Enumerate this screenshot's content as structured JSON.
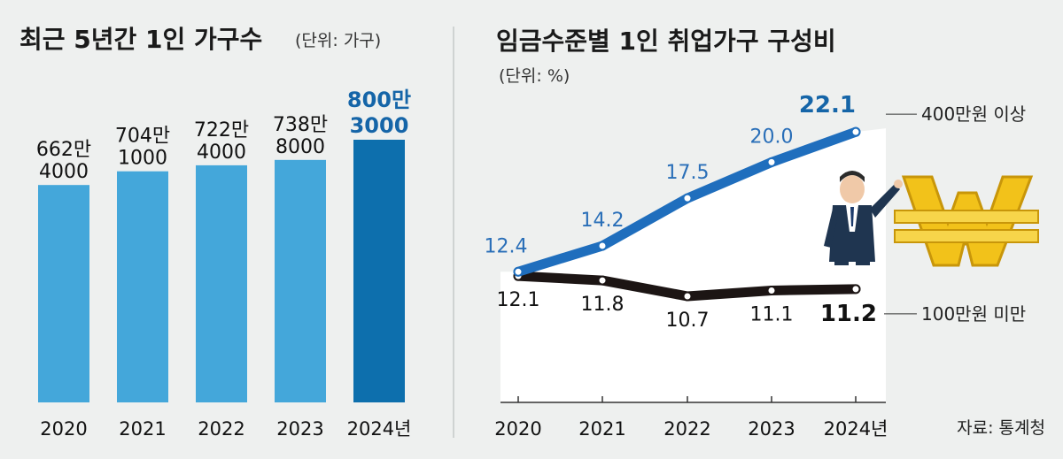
{
  "left": {
    "title": "최근 5년간 1인 가구수",
    "unit": "(단위: 가구)"
  },
  "right": {
    "title": "임금수준별 1인 취업가구 구성비",
    "unit": "(단위: %)",
    "source": "자료: 통계청"
  },
  "colors": {
    "bar": "#44a7da",
    "bar_highlight": "#0d6fad",
    "line_high": "#1f6ebd",
    "line_low": "#1c1514",
    "panel_bg": "#ffffff",
    "page_bg": "#eef0ef"
  },
  "chart_data": [
    {
      "type": "bar",
      "title": "최근 5년간 1인 가구수",
      "unit": "(단위: 가구)",
      "categories": [
        "2020",
        "2021",
        "2022",
        "2023",
        "2024년"
      ],
      "values": [
        6624000,
        7041000,
        7224000,
        7388000,
        8003000
      ],
      "value_labels": [
        [
          "662만",
          "4000"
        ],
        [
          "704만",
          "1000"
        ],
        [
          "722만",
          "4000"
        ],
        [
          "738만",
          "8000"
        ],
        [
          "800만",
          "3000"
        ]
      ],
      "highlight_index": 4
    },
    {
      "type": "line",
      "title": "임금수준별 1인 취업가구 구성비",
      "unit": "(단위: %)",
      "x": [
        "2020",
        "2021",
        "2022",
        "2023",
        "2024년"
      ],
      "series": [
        {
          "name": "400만원 이상",
          "values": [
            12.4,
            14.2,
            17.5,
            20.0,
            22.1
          ],
          "labels": [
            "12.4",
            "14.2",
            "17.5",
            "20.0",
            "22.1"
          ]
        },
        {
          "name": "100만원 미만",
          "values": [
            12.1,
            11.8,
            10.7,
            11.1,
            11.2
          ],
          "labels": [
            "12.1",
            "11.8",
            "10.7",
            "11.1",
            "11.2"
          ]
        }
      ],
      "source": "자료: 통계청"
    }
  ]
}
